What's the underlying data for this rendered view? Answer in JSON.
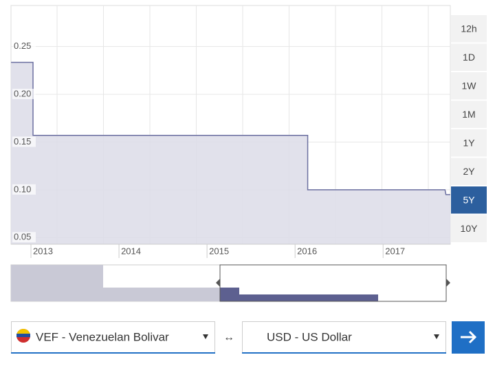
{
  "chart_data": {
    "type": "line",
    "x": [
      2012.75,
      2013.0,
      2013.0,
      2016.12,
      2016.12,
      2017.68,
      2017.69,
      2017.74
    ],
    "values": [
      0.2335,
      0.2335,
      0.157,
      0.157,
      0.1,
      0.1,
      0.095,
      0.095
    ],
    "color": "#6b6fa0",
    "fill": "#dcdce8",
    "xlim": [
      2012.75,
      2017.74
    ],
    "xticks": [
      2013,
      2014,
      2015,
      2016,
      2017
    ],
    "ylim": [
      0.043,
      0.293
    ],
    "yticks": [
      0.05,
      {
        "value": 0.1,
        "label": "0.10"
      },
      0.15,
      {
        "value": 0.2,
        "label": "0.20"
      },
      0.25
    ],
    "grid": true
  },
  "range_buttons": [
    "12h",
    "1D",
    "1W",
    "1M",
    "1Y",
    "2Y",
    "5Y",
    "10Y"
  ],
  "active_range": "5Y",
  "converter": {
    "from": "VEF - Venezuelan Bolivar",
    "swap": "↔",
    "to": "USD - US Dollar"
  }
}
